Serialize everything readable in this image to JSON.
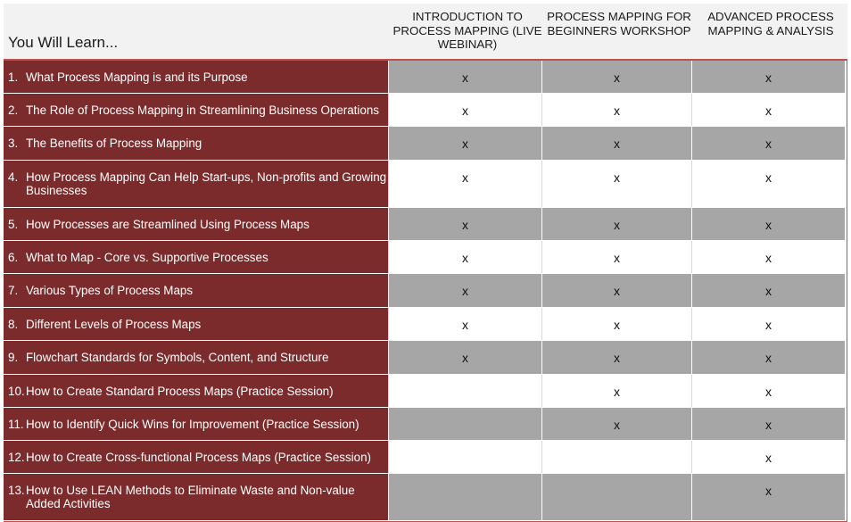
{
  "header": {
    "title": "You Will Learn...",
    "columns": [
      "INTRODUCTION TO PROCESS MAPPING (LIVE WEBINAR)",
      "PROCESS MAPPING FOR BEGINNERS WORKSHOP",
      "ADVANCED PROCESS MAPPING & ANALYSIS"
    ]
  },
  "rows": [
    {
      "num": "1.",
      "text": "What Process Mapping is and its Purpose",
      "marks": [
        "x",
        "x",
        "x"
      ]
    },
    {
      "num": "2.",
      "text": "The Role of Process Mapping in Streamlining Business Operations",
      "marks": [
        "x",
        "x",
        "x"
      ]
    },
    {
      "num": "3.",
      "text": "The Benefits of Process Mapping",
      "marks": [
        "x",
        "x",
        "x"
      ]
    },
    {
      "num": "4.",
      "text": "How Process Mapping Can Help Start-ups, Non-profits and Growing Businesses",
      "marks": [
        "x",
        "x",
        "x"
      ]
    },
    {
      "num": "5.",
      "text": "How Processes are Streamlined Using Process Maps",
      "marks": [
        "x",
        "x",
        "x"
      ]
    },
    {
      "num": "6.",
      "text": "What to Map - Core vs. Supportive Processes",
      "marks": [
        "x",
        "x",
        "x"
      ]
    },
    {
      "num": "7.",
      "text": "Various Types of Process Maps",
      "marks": [
        "x",
        "x",
        "x"
      ]
    },
    {
      "num": "8.",
      "text": "Different Levels of Process Maps",
      "marks": [
        "x",
        "x",
        "x"
      ]
    },
    {
      "num": "9.",
      "text": "Flowchart Standards for Symbols, Content, and Structure",
      "marks": [
        "x",
        "x",
        "x"
      ]
    },
    {
      "num": "10.",
      "text": "How to Create Standard Process Maps (Practice Session)",
      "marks": [
        "",
        "x",
        "x"
      ]
    },
    {
      "num": "11.",
      "text": "How to Identify Quick Wins for Improvement (Practice Session)",
      "marks": [
        "",
        "x",
        "x"
      ]
    },
    {
      "num": "12.",
      "text": "How to Create Cross-functional Process Maps (Practice Session)",
      "marks": [
        "",
        "",
        "x"
      ]
    },
    {
      "num": "13.",
      "text": "How to Use LEAN Methods to Eliminate Waste and Non-value Added Activities",
      "marks": [
        "",
        "",
        "x"
      ]
    }
  ],
  "colors": {
    "label_background": "#7b2b2b",
    "shaded_row": "#a6a6a6",
    "accent_border": "#c0504d",
    "header_background": "#f2f2f2"
  }
}
